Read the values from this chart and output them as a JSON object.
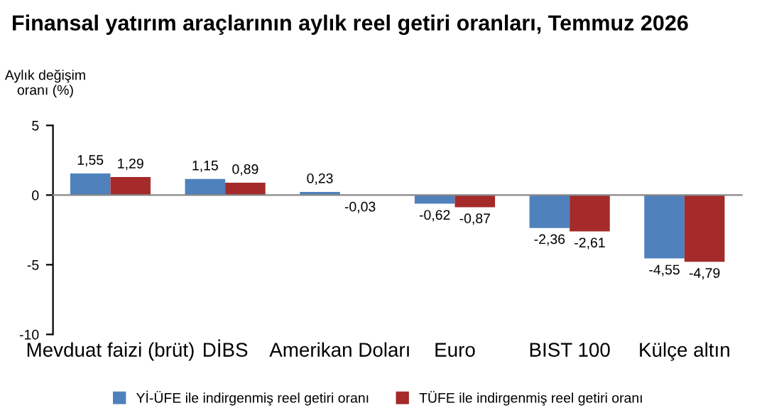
{
  "chart_data": {
    "type": "bar",
    "title": "Finansal yatırım araçlarının aylık reel getiri oranları, Temmuz 2026",
    "ylabel": "Aylık değişim\noranı (%)",
    "categories": [
      "Mevduat faizi (brüt)",
      "DİBS",
      "Amerikan Doları",
      "Euro",
      "BIST 100",
      "Külçe altın"
    ],
    "series": [
      {
        "name": "Yİ-ÜFE ile indirgenmiş reel getiri oranı",
        "color": "#4f81bd",
        "values": [
          1.55,
          1.15,
          0.23,
          -0.62,
          -2.36,
          -4.55
        ],
        "value_labels": [
          "1,55",
          "1,15",
          "0,23",
          "-0,62",
          "-2,36",
          "-4,55"
        ]
      },
      {
        "name": "TÜFE ile indirgenmiş reel getiri oranı",
        "color": "#a52a2a",
        "values": [
          1.29,
          0.89,
          -0.03,
          -0.87,
          -2.61,
          -4.79
        ],
        "value_labels": [
          "1,29",
          "0,89",
          "-0,03",
          "-0,87",
          "-2,61",
          "-4,79"
        ]
      }
    ],
    "ylim": [
      -10,
      5
    ],
    "yticks": [
      -10,
      -5,
      0,
      5
    ],
    "legend": "bottom"
  }
}
